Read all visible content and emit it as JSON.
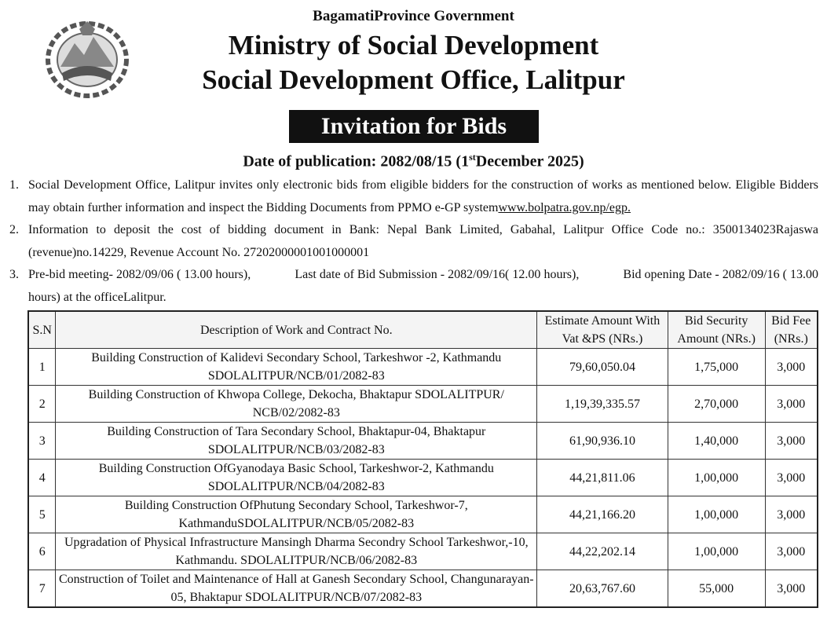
{
  "header": {
    "province": "BagamatiProvince Government",
    "ministry": "Ministry of Social Development",
    "office": "Social Development Office, Lalitpur",
    "title": "Invitation for Bids",
    "date": {
      "prefix": "Date of publication: 2082/08/15 (1",
      "sup": "st",
      "suffix": "December 2025)"
    }
  },
  "items": [
    {
      "number": "1.",
      "text": "Social Development Office, Lalitpur invites only electronic bids from eligible bidders for the construction of works as mentioned below. Eligible Bidders may obtain further information and inspect the Bidding Documents from  PPMO e-GP system",
      "link": "www.bolpatra.gov.np/egp."
    },
    {
      "number": "2.",
      "text": "Information to deposit the cost of bidding document in Bank: Nepal Bank Limited, Gabahal, Lalitpur  Office Code no.: 3500134023Rajaswa (revenue)no.14229, Revenue Account No. 27202000001001000001"
    },
    {
      "number": "3.",
      "parts": [
        "Pre-bid meeting-  2082/09/06 ( 13.00 hours),",
        "Last date of Bid Submission -  2082/09/16( 12.00 hours),",
        "Bid opening Date - 2082/09/16 ( 13.00 hours)   at the officeLalitpur."
      ]
    }
  ],
  "table": {
    "headers": [
      "S.N",
      "Description of Work and Contract No.",
      "Estimate Amount With Vat &PS (NRs.)",
      "Bid Security Amount (NRs.)",
      "Bid Fee (NRs.)"
    ],
    "rows": [
      [
        "1",
        "Building Construction of Kalidevi Secondary School, Tarkeshwor -2, Kathmandu SDOLALITPUR/NCB/01/2082-83",
        "79,60,050.04",
        "1,75,000",
        "3,000"
      ],
      [
        "2",
        "Building Construction of Khwopa College, Dekocha, Bhaktapur SDOLALITPUR/ NCB/02/2082-83",
        "1,19,39,335.57",
        "2,70,000",
        "3,000"
      ],
      [
        "3",
        "Building Construction of Tara Secondary School, Bhaktapur-04, Bhaktapur SDOLALITPUR/NCB/03/2082-83",
        "61,90,936.10",
        "1,40,000",
        "3,000"
      ],
      [
        "4",
        "Building Construction OfGyanodaya Basic School, Tarkeshwor-2, Kathmandu SDOLALITPUR/NCB/04/2082-83",
        "44,21,811.06",
        "1,00,000",
        "3,000"
      ],
      [
        "5",
        "Building Construction OfPhutung Secondary School, Tarkeshwor-7, KathmanduSDOLALITPUR/NCB/05/2082-83",
        "44,21,166.20",
        "1,00,000",
        "3,000"
      ],
      [
        "6",
        "Upgradation of Physical Infrastructure Mansingh Dharma Secondry School Tarkeshwor,-10, Kathmandu. SDOLALITPUR/NCB/06/2082-83",
        "44,22,202.14",
        "1,00,000",
        "3,000"
      ],
      [
        "7",
        "Construction of Toilet and Maintenance of Hall at Ganesh Secondary School, Changunarayan-05, Bhaktapur SDOLALITPUR/NCB/07/2082-83",
        "20,63,767.60",
        "55,000",
        "3,000"
      ]
    ]
  }
}
